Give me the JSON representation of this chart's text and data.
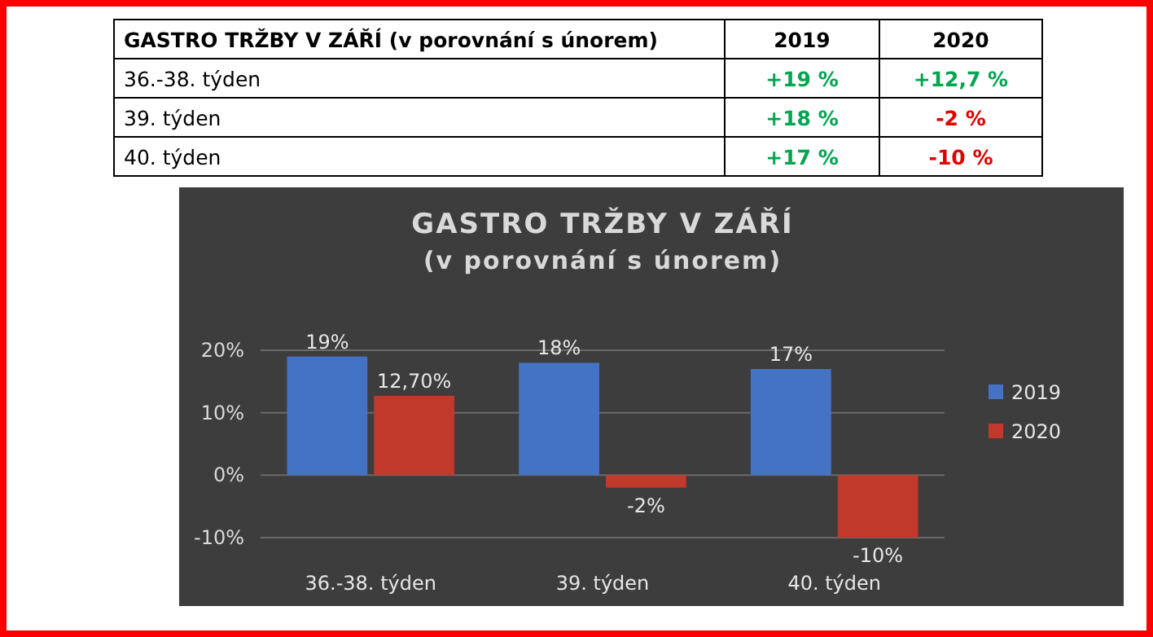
{
  "chart_data": [
    {
      "type": "other",
      "title": "GASTRO TRŽBY V ZÁŘÍ (v porovnání s únorem)",
      "categories": [
        "36.-38. týden",
        "39. týden",
        "40. týden"
      ],
      "series": [
        {
          "name": "2019",
          "values": [
            19,
            18,
            17
          ],
          "value_labels": [
            "+19 %",
            "+18 %",
            "+17 %"
          ],
          "colors": [
            "#00a550",
            "#00a550",
            "#00a550"
          ]
        },
        {
          "name": "2020",
          "values": [
            12.7,
            -2,
            -10
          ],
          "value_labels": [
            "+12,7 %",
            "-2 %",
            "-10 %"
          ],
          "colors": [
            "#00a550",
            "#e00000",
            "#e00000"
          ]
        }
      ]
    },
    {
      "type": "bar",
      "title": "GASTRO TRŽBY V ZÁŘÍ",
      "subtitle": "(v porovnání s únorem)",
      "categories": [
        "36.-38. týden",
        "39. týden",
        "40. týden"
      ],
      "series": [
        {
          "name": "2019",
          "color": "#4472c4",
          "values": [
            19,
            18,
            17
          ],
          "value_labels": [
            "19%",
            "18%",
            "17%"
          ]
        },
        {
          "name": "2020",
          "color": "#c0392b",
          "values": [
            12.7,
            -2,
            -10
          ],
          "value_labels": [
            "12,70%",
            "-2%",
            "-10%"
          ]
        }
      ],
      "ylim": [
        -10,
        20
      ],
      "yticks": [
        {
          "value": -10,
          "label": "-10%"
        },
        {
          "value": 0,
          "label": "0%"
        },
        {
          "value": 10,
          "label": "10%"
        },
        {
          "value": 20,
          "label": "20%"
        }
      ],
      "grid": "y",
      "legend": "right"
    }
  ]
}
